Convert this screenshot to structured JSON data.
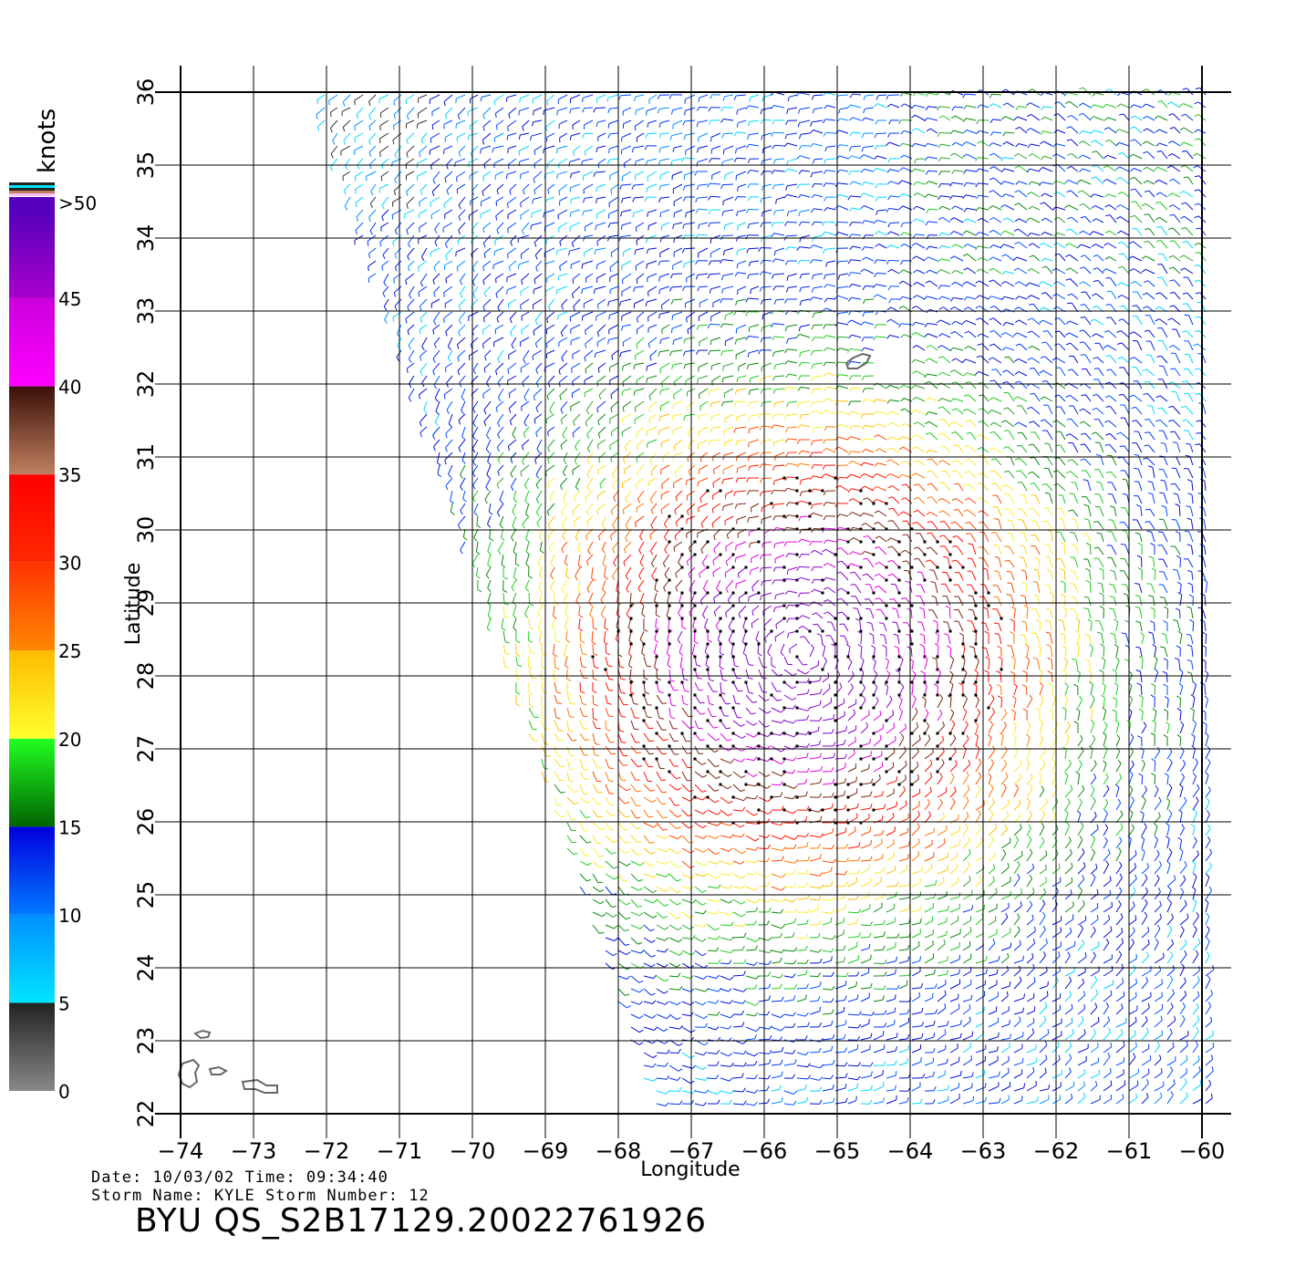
{
  "map": {
    "x_axis_label": "Longitude",
    "y_axis_label": "Latitude",
    "lon_ticks": [
      "-74",
      "-73",
      "-72",
      "-71",
      "-70",
      "-69",
      "-68",
      "-67",
      "-66",
      "-65",
      "-64",
      "-63",
      "-62",
      "-61",
      "-60"
    ],
    "lat_ticks": [
      "22",
      "23",
      "24",
      "25",
      "26",
      "27",
      "28",
      "29",
      "30",
      "31",
      "32",
      "33",
      "34",
      "35",
      "36"
    ],
    "lon_range": [
      -74,
      -60
    ],
    "lat_range": [
      22,
      36
    ],
    "layer": "scatterometer wind barbs"
  },
  "legend": {
    "title": "knots",
    "bands": [
      {
        "label": "0",
        "from": 0,
        "to": 5,
        "colors": [
          "#888888",
          "#222222"
        ]
      },
      {
        "label": "5",
        "from": 5,
        "to": 10,
        "colors": [
          "#00e5ff",
          "#0090ff"
        ]
      },
      {
        "label": "10",
        "from": 10,
        "to": 15,
        "colors": [
          "#0078ff",
          "#0000dd"
        ]
      },
      {
        "label": "15",
        "from": 15,
        "to": 20,
        "colors": [
          "#006400",
          "#22ff22"
        ]
      },
      {
        "label": "20",
        "from": 20,
        "to": 25,
        "colors": [
          "#ffff30",
          "#ffbb00"
        ]
      },
      {
        "label": "25",
        "from": 25,
        "to": 30,
        "colors": [
          "#ff8800",
          "#ff3300"
        ]
      },
      {
        "label": "30",
        "from": 30,
        "to": 35,
        "colors": [
          "#ff2a00",
          "#ff0000"
        ]
      },
      {
        "label": "35",
        "from": 35,
        "to": 40,
        "colors": [
          "#c08060",
          "#3a1008"
        ]
      },
      {
        "label": "40",
        "from": 40,
        "to": 45,
        "colors": [
          "#ff00ff",
          "#cc00dd"
        ]
      },
      {
        "label": "45",
        "from": 45,
        "to": 50,
        "colors": [
          "#aa00cc",
          "#5500bb"
        ]
      },
      {
        "label": ">50",
        "from": 50,
        "to": 55,
        "colors": [
          "#5500bb",
          "#5500bb"
        ]
      }
    ]
  },
  "info": {
    "line1": "Date: 10/03/02   Time: 09:34:40",
    "line2": "Storm Name: KYLE   Storm Number: 12",
    "product": "BYU QS_S2B17129.20022761926"
  }
}
